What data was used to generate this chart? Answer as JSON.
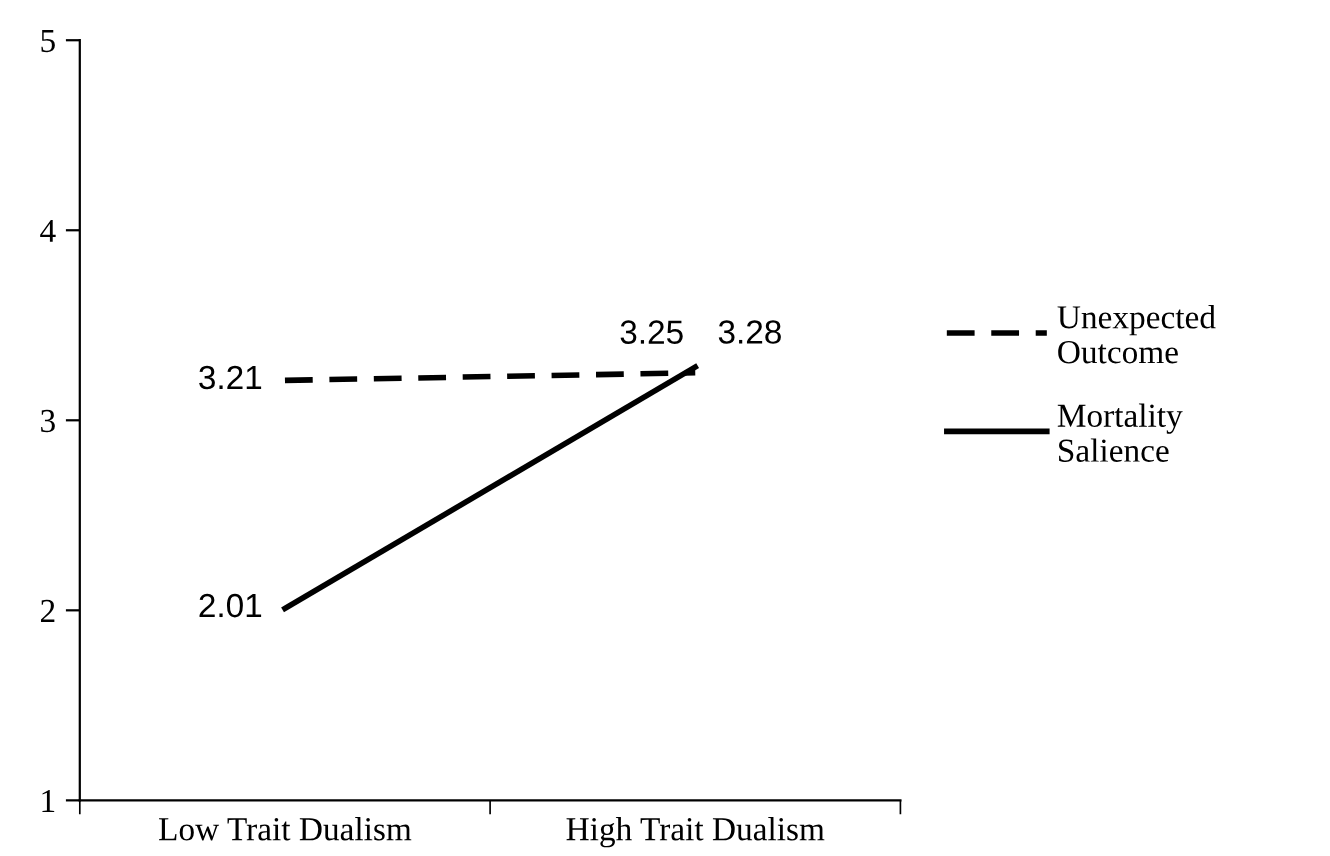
{
  "chart_data": {
    "type": "line",
    "categories": [
      "Low Trait Dualism",
      "High Trait Dualism"
    ],
    "series": [
      {
        "name": "Unexpected Outcome",
        "color": "#000000",
        "line_style": "dashed",
        "values": [
          3.21,
          3.25
        ]
      },
      {
        "name": "Mortality Salience",
        "color": "#000000",
        "line_style": "solid",
        "values": [
          2.01,
          3.28
        ]
      }
    ],
    "ylim": [
      1,
      5
    ],
    "yticks": [
      1,
      2,
      3,
      4,
      5
    ],
    "data_labels": true,
    "legend": "right",
    "grid": false,
    "marker": "none"
  }
}
